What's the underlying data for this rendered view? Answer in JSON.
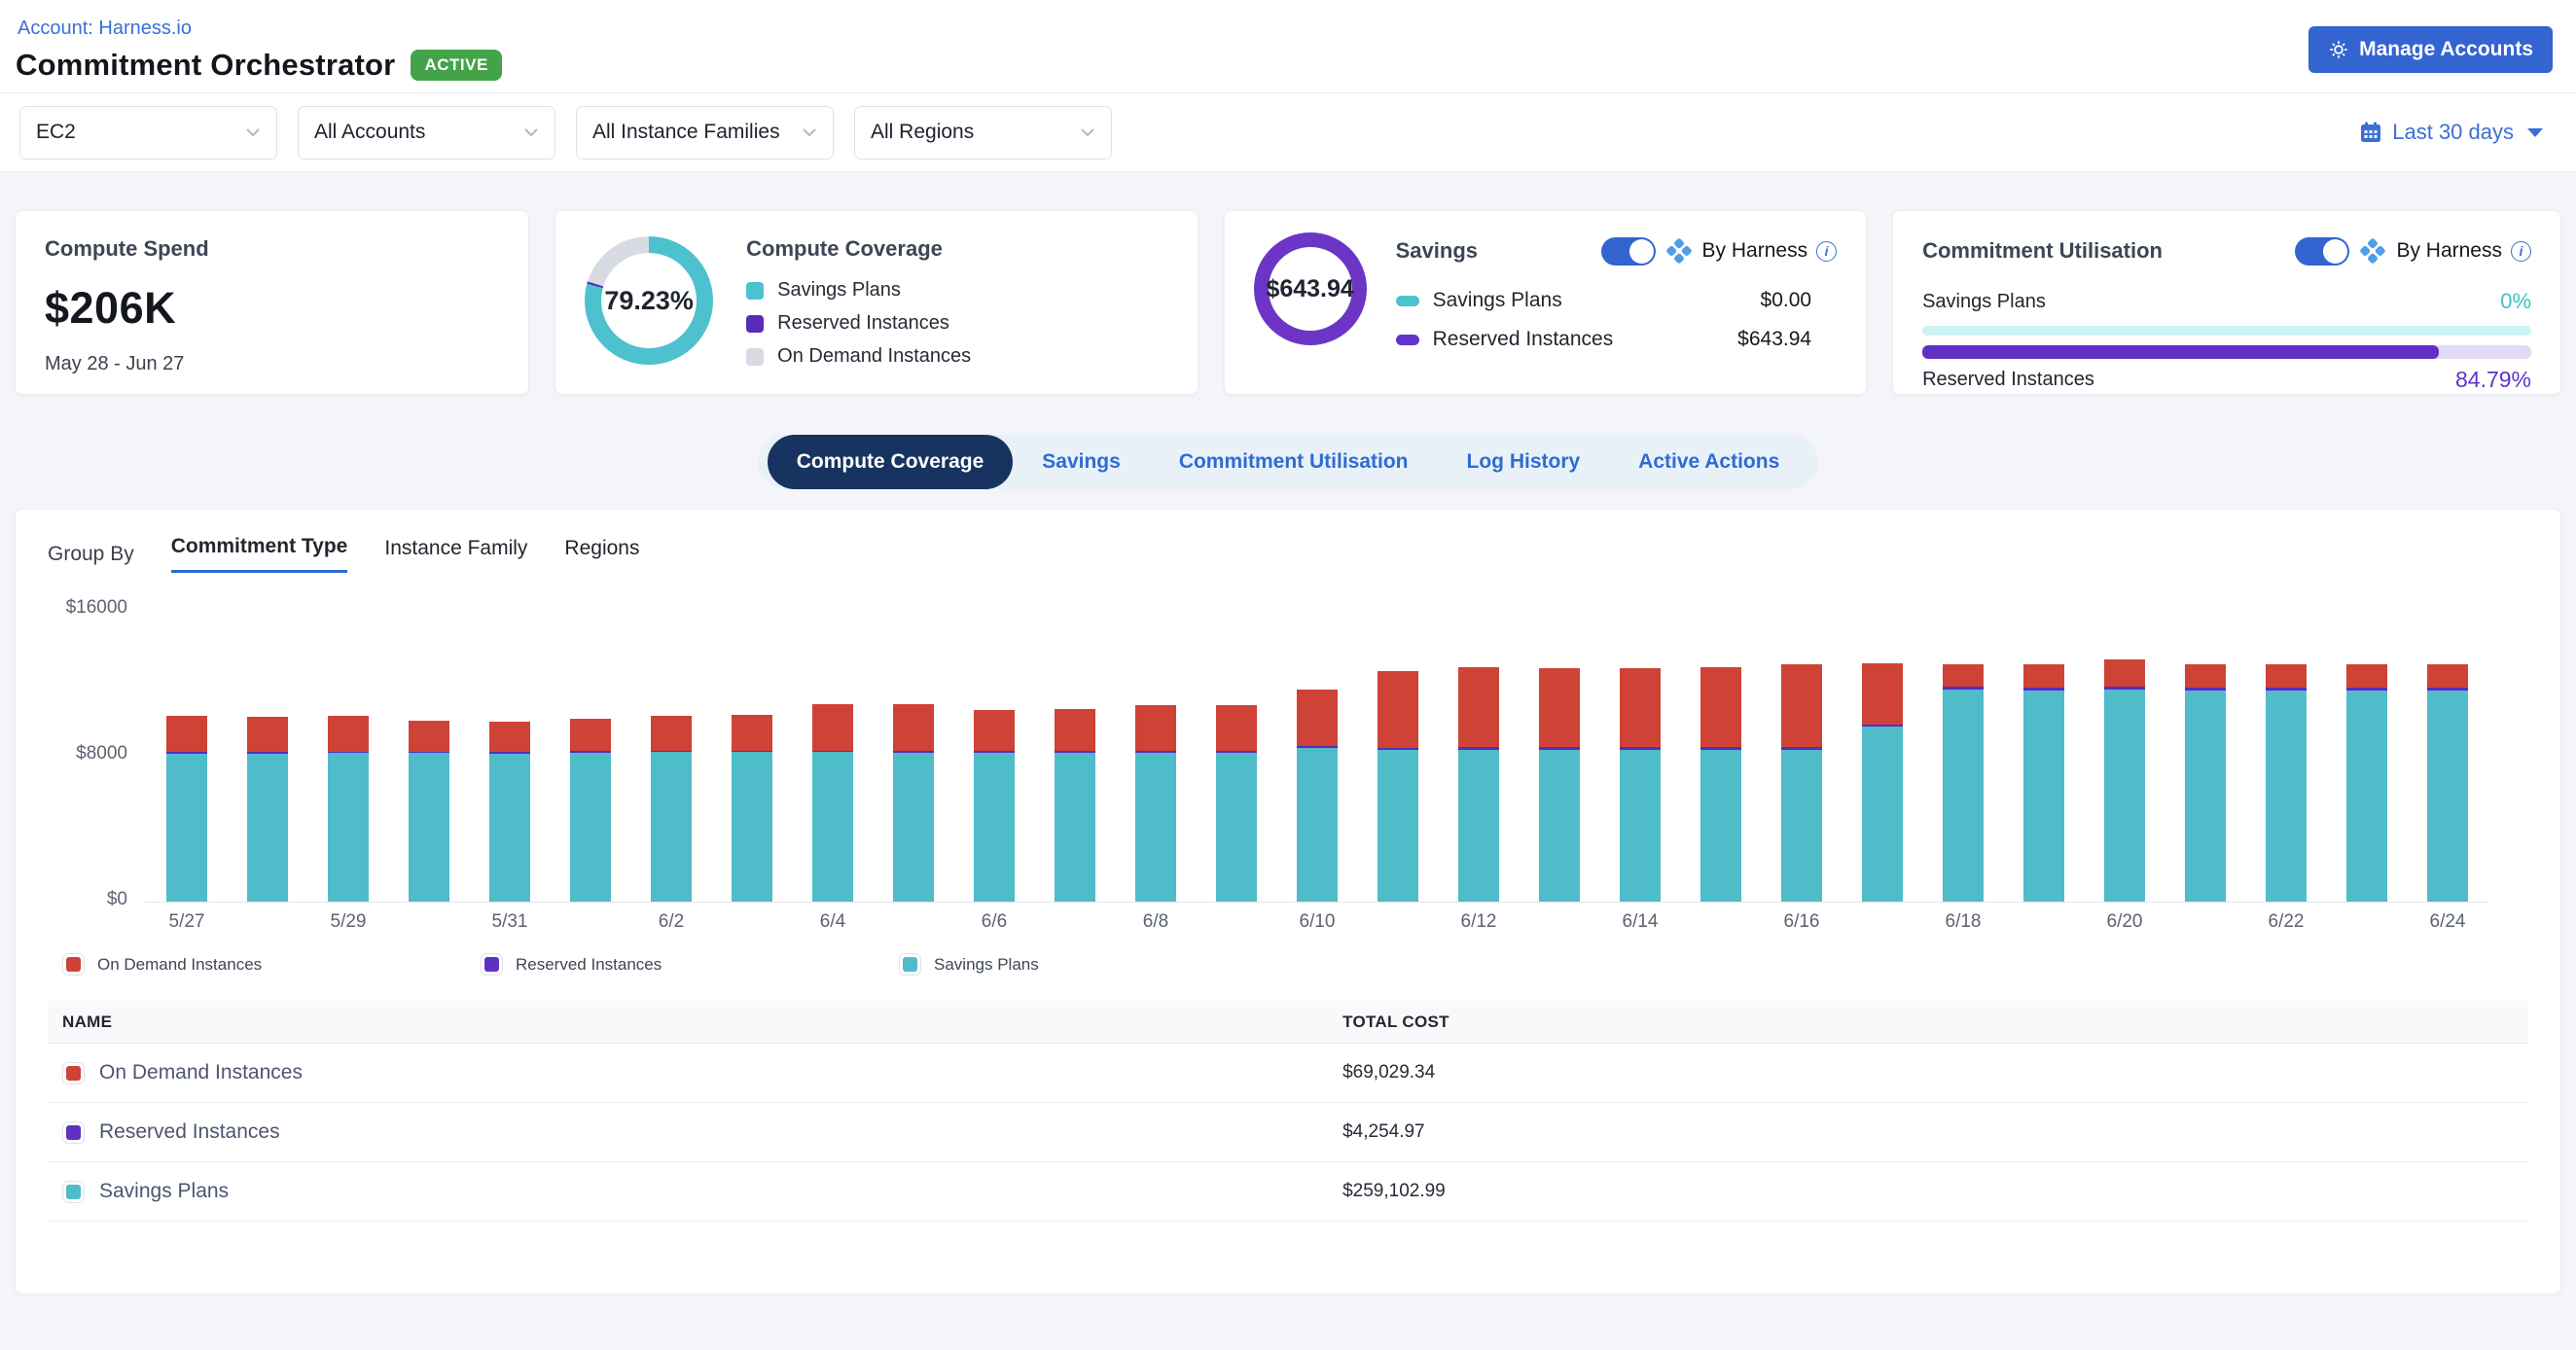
{
  "header": {
    "account_link": "Account: Harness.io",
    "title": "Commitment Orchestrator",
    "status_badge": "ACTIVE",
    "manage_accounts_label": "Manage Accounts"
  },
  "filters": {
    "service": "EC2",
    "accounts": "All Accounts",
    "instance_families": "All Instance Families",
    "regions": "All Regions",
    "date_range": "Last 30 days"
  },
  "cards": {
    "compute_spend": {
      "title": "Compute Spend",
      "value": "$206K",
      "period": "May 28 - Jun 27"
    },
    "compute_coverage": {
      "title": "Compute Coverage",
      "percent": "79.23%",
      "legend": [
        {
          "label": "Savings Plans",
          "color": "#4ec1ce"
        },
        {
          "label": "Reserved Instances",
          "color": "#5a2bb8"
        },
        {
          "label": "On Demand Instances",
          "color": "#d9dbe4"
        }
      ]
    },
    "savings": {
      "title": "Savings",
      "toggle_label": "By Harness",
      "total": "$643.94",
      "rows": [
        {
          "label": "Savings Plans",
          "value": "$0.00",
          "color": "#4ec1ce"
        },
        {
          "label": "Reserved Instances",
          "value": "$643.94",
          "color": "#6034c6"
        }
      ]
    },
    "commitment_utilisation": {
      "title": "Commitment Utilisation",
      "toggle_label": "By Harness",
      "rows": [
        {
          "label": "Savings Plans",
          "value": "0%",
          "percent": 0,
          "color": "#3fc0cb",
          "track": "#ccf2f4"
        },
        {
          "label": "Reserved Instances",
          "value": "84.79%",
          "percent": 84.79,
          "color": "#6030c4",
          "track": "#e4daf8"
        }
      ]
    }
  },
  "tabs": [
    {
      "label": "Compute Coverage",
      "active": true
    },
    {
      "label": "Savings",
      "active": false
    },
    {
      "label": "Commitment Utilisation",
      "active": false
    },
    {
      "label": "Log History",
      "active": false
    },
    {
      "label": "Active Actions",
      "active": false
    }
  ],
  "group_by": {
    "label": "Group By",
    "options": [
      {
        "label": "Commitment Type",
        "active": true
      },
      {
        "label": "Instance Family",
        "active": false
      },
      {
        "label": "Regions",
        "active": false
      }
    ]
  },
  "chart_data": {
    "type": "bar",
    "stacked": true,
    "x": [
      "5/27",
      "5/28",
      "5/29",
      "5/30",
      "5/31",
      "6/1",
      "6/2",
      "6/3",
      "6/4",
      "6/5",
      "6/6",
      "6/7",
      "6/8",
      "6/9",
      "6/10",
      "6/11",
      "6/12",
      "6/13",
      "6/14",
      "6/15",
      "6/16",
      "6/17",
      "6/18",
      "6/19",
      "6/20",
      "6/21",
      "6/22",
      "6/23",
      "6/24"
    ],
    "x_tick_every": 2,
    "ylim": [
      0,
      16000
    ],
    "yticks": [
      "$0",
      "$8000",
      "$16000"
    ],
    "series": [
      {
        "name": "Savings Plans",
        "color": "#4fbcc9",
        "values": [
          8000,
          7980,
          8010,
          8010,
          8000,
          8020,
          8060,
          8060,
          8060,
          8040,
          8030,
          8040,
          8040,
          8040,
          8270,
          8180,
          8200,
          8200,
          8200,
          8200,
          8200,
          9440,
          11420,
          11400,
          11450,
          11380,
          11380,
          11400,
          11380
        ]
      },
      {
        "name": "Reserved Instances",
        "color": "#5a2bc0",
        "values": [
          90,
          90,
          90,
          90,
          90,
          90,
          90,
          90,
          90,
          110,
          110,
          110,
          110,
          110,
          110,
          130,
          130,
          120,
          120,
          130,
          120,
          130,
          150,
          150,
          150,
          150,
          150,
          150,
          150
        ]
      },
      {
        "name": "On Demand Instances",
        "color": "#cf4236",
        "values": [
          1950,
          1890,
          1900,
          1680,
          1600,
          1780,
          1860,
          1940,
          2500,
          2500,
          2170,
          2250,
          2450,
          2430,
          3080,
          4130,
          4320,
          4260,
          4260,
          4310,
          4500,
          3310,
          1250,
          1270,
          1450,
          1290,
          1290,
          1270,
          1270
        ]
      }
    ],
    "legend_order": [
      "On Demand Instances",
      "Reserved Instances",
      "Savings Plans"
    ]
  },
  "chart_legend": [
    {
      "label": "On Demand Instances",
      "color": "#cf4236"
    },
    {
      "label": "Reserved Instances",
      "color": "#6030c4"
    },
    {
      "label": "Savings Plans",
      "color": "#4fbcc9"
    }
  ],
  "table": {
    "columns": [
      "NAME",
      "TOTAL COST"
    ],
    "rows": [
      {
        "name": "On Demand Instances",
        "color": "#cf4236",
        "total_cost": "$69,029.34"
      },
      {
        "name": "Reserved Instances",
        "color": "#6030c4",
        "total_cost": "$4,254.97"
      },
      {
        "name": "Savings Plans",
        "color": "#4fbcc9",
        "total_cost": "$259,102.99"
      }
    ]
  }
}
